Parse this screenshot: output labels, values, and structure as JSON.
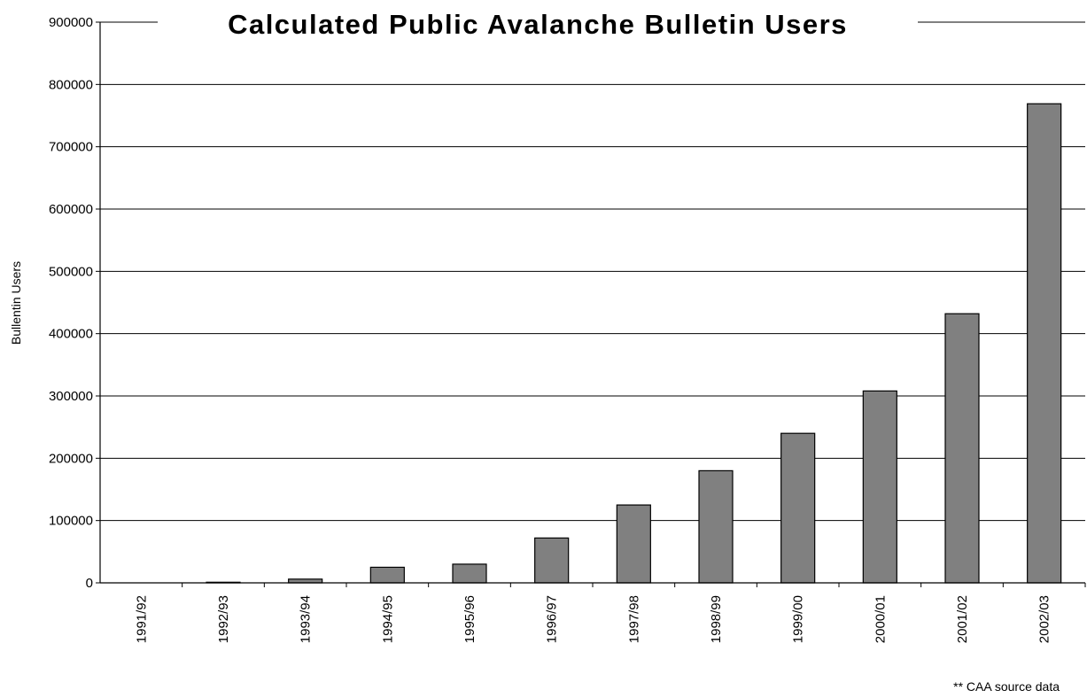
{
  "chart_data": {
    "type": "bar",
    "title": "Calculated Public Avalanche Bulletin Users",
    "xlabel": "",
    "ylabel": "Bullentin Users",
    "categories": [
      "1991/92",
      "1992/93",
      "1993/94",
      "1994/95",
      "1995/96",
      "1996/97",
      "1997/98",
      "1998/99",
      "1999/00",
      "2000/01",
      "2001/02",
      "2002/03"
    ],
    "values": [
      0,
      1000,
      6000,
      25000,
      30000,
      72000,
      125000,
      180000,
      240000,
      308000,
      432000,
      769000
    ],
    "ylim": [
      0,
      900000
    ],
    "yticks": [
      "0",
      "100000",
      "200000",
      "300000",
      "400000",
      "500000",
      "600000",
      "700000",
      "800000",
      "900000"
    ],
    "grid": true,
    "bar_color": "#808080",
    "footnote": "** CAA source data"
  }
}
